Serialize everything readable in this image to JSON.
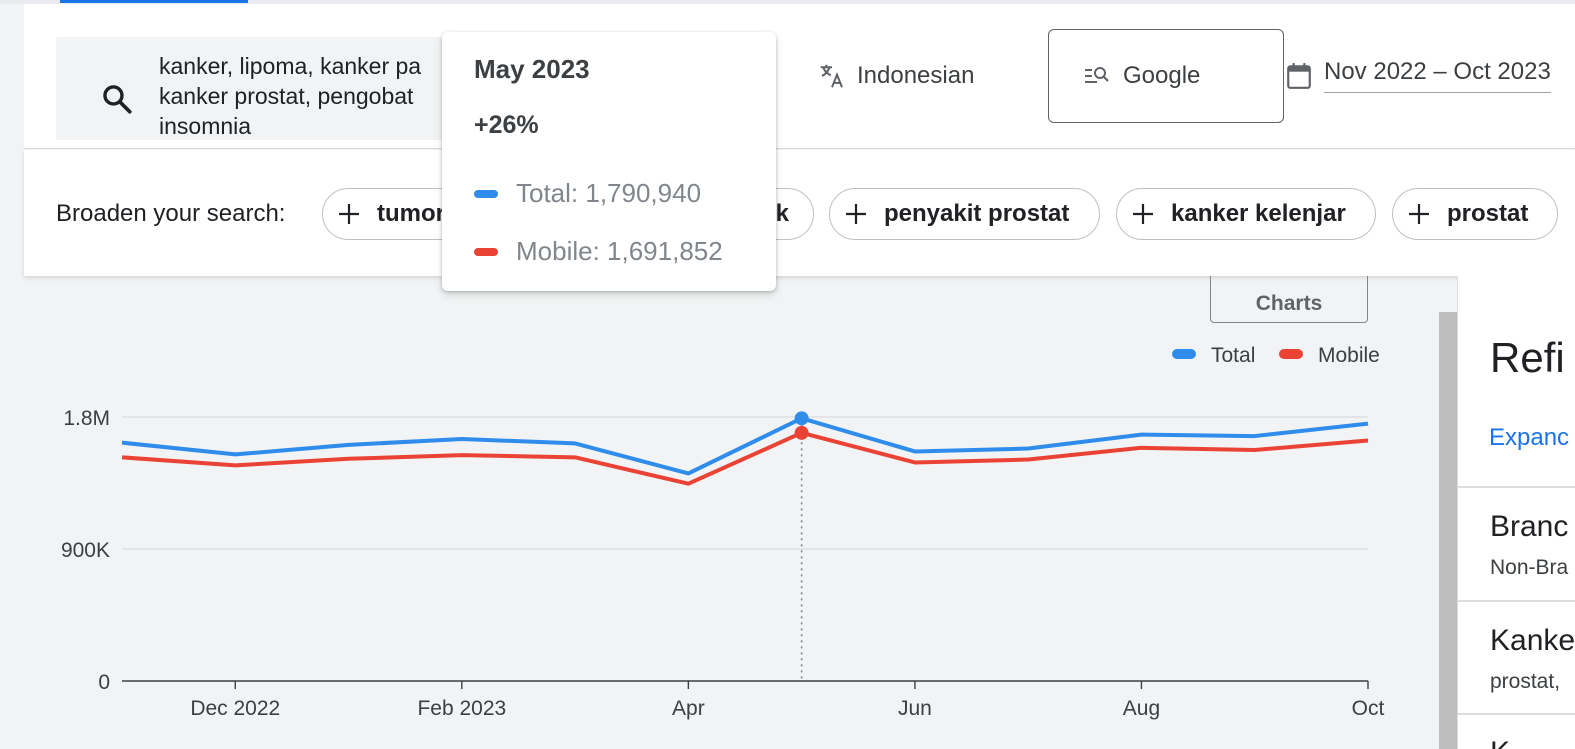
{
  "search": {
    "query_text": "kanker, lipoma, kanker pa\nkanker prostat, pengobat\ninsomnia",
    "icon": "search-icon"
  },
  "language": {
    "label": "Indonesian",
    "icon": "translate-icon"
  },
  "engine": {
    "label": "Google",
    "icon": "manage-search-icon"
  },
  "date_range": {
    "label": "Nov 2022 – Oct 2023",
    "icon": "calendar-icon"
  },
  "broaden": {
    "label": "Broaden your search:",
    "chips": [
      {
        "label": "tumor"
      },
      {
        "label": "k"
      },
      {
        "label": "penyakit prostat"
      },
      {
        "label": "kanker kelenjar"
      },
      {
        "label": "prostat"
      }
    ]
  },
  "charts_tab": {
    "label": "Charts"
  },
  "tooltip": {
    "title": "May 2023",
    "change": "+26%",
    "total": "Total: 1,790,940",
    "mobile": "Mobile: 1,691,852"
  },
  "right_panel": {
    "title": "Refi",
    "expand_link": "Expanc",
    "items": [
      {
        "title": "Branc",
        "sub": "Non-Bra"
      },
      {
        "title": "Kanke",
        "sub": "prostat,"
      },
      {
        "title": "K"
      }
    ]
  },
  "colors": {
    "total": "#2f8ceb",
    "mobile": "#ea4335",
    "accent": "#1a73e8"
  },
  "chart_data": {
    "type": "line",
    "x": [
      "Nov 2022",
      "Dec 2022",
      "Jan 2023",
      "Feb 2023",
      "Mar 2023",
      "Apr 2023",
      "May 2023",
      "Jun 2023",
      "Jul 2023",
      "Aug 2023",
      "Sep 2023",
      "Oct 2023"
    ],
    "series": [
      {
        "name": "Total",
        "color": "#2f8ceb",
        "values": [
          1625000,
          1545000,
          1610000,
          1650000,
          1620000,
          1415000,
          1790940,
          1565000,
          1585000,
          1680000,
          1670000,
          1755000
        ]
      },
      {
        "name": "Mobile",
        "color": "#ea4335",
        "values": [
          1525000,
          1470000,
          1515000,
          1540000,
          1525000,
          1345000,
          1691852,
          1490000,
          1510000,
          1590000,
          1575000,
          1640000
        ]
      }
    ],
    "y_ticks": [
      {
        "value": 0,
        "label": "0"
      },
      {
        "value": 900000,
        "label": "900K"
      },
      {
        "value": 1800000,
        "label": "1.8M"
      }
    ],
    "x_ticks": [
      {
        "index": 1,
        "label": "Dec 2022"
      },
      {
        "index": 3,
        "label": "Feb 2023"
      },
      {
        "index": 5,
        "label": "Apr"
      },
      {
        "index": 7,
        "label": "Jun"
      },
      {
        "index": 9,
        "label": "Aug"
      },
      {
        "index": 11,
        "label": "Oct"
      }
    ],
    "ylim": [
      0,
      1800000
    ],
    "highlight_index": 6,
    "legend": {
      "placement": "top-right",
      "items": [
        "Total",
        "Mobile"
      ]
    }
  }
}
